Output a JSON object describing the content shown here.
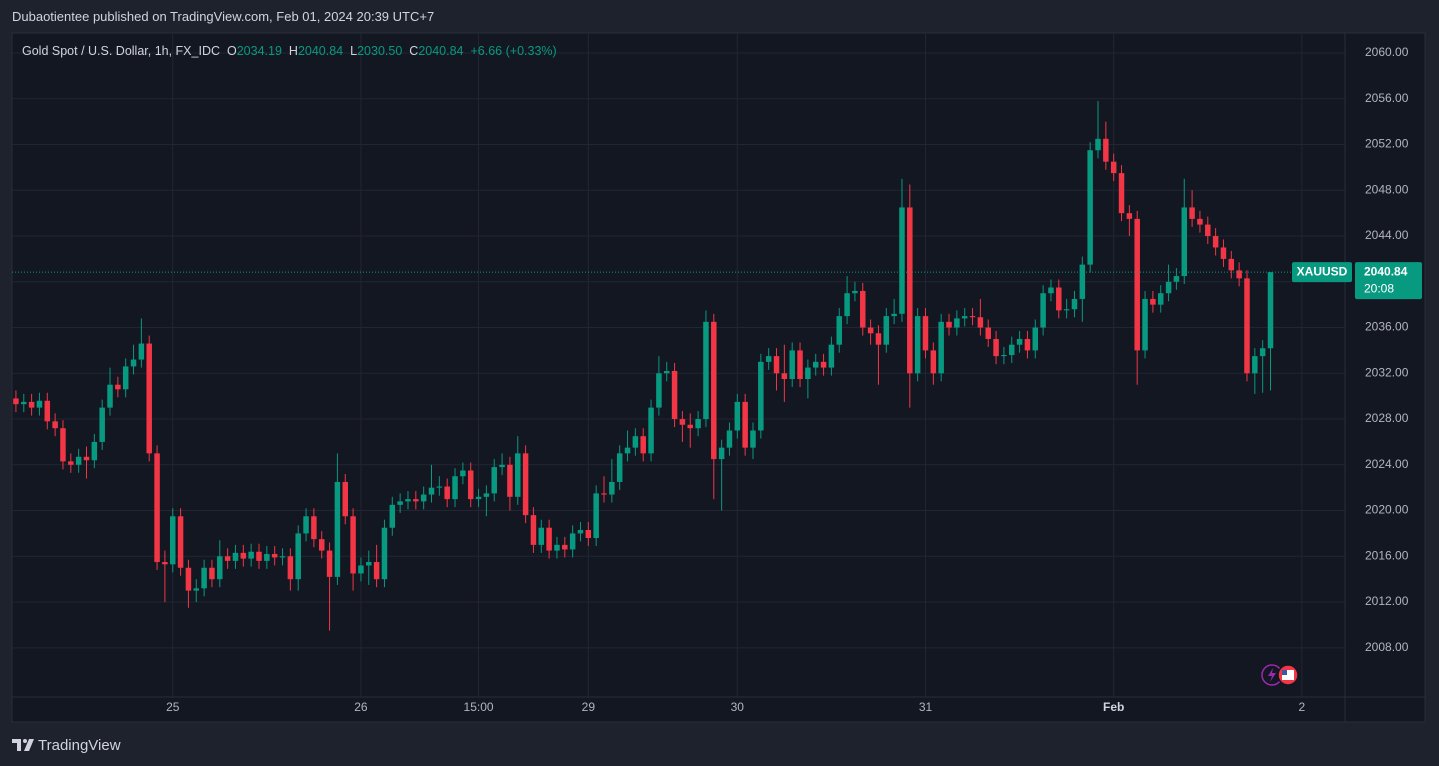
{
  "header": "Dubaotientee published on TradingView.com, Feb 01, 2024 20:39 UTC+7",
  "brand": "TradingView",
  "chart_data": {
    "type": "candlestick",
    "title": "Gold Spot / U.S. Dollar, 1h, FX_IDC",
    "legend": {
      "o_label": "O",
      "o": "2034.19",
      "h_label": "H",
      "h": "2040.84",
      "l_label": "L",
      "l": "2030.50",
      "c_label": "C",
      "c": "2040.84",
      "change": "+6.66 (+0.33%)"
    },
    "price_tag": {
      "symbol": "XAUUSD",
      "price": "2040.84",
      "countdown": "20:08"
    },
    "up_color": "#089981",
    "down_color": "#f23645",
    "grid": true,
    "ylim": [
      2003.7,
      2061.75
    ],
    "yticks": [
      {
        "value": 2008,
        "label": "2008.00"
      },
      {
        "value": 2012,
        "label": "2012.00"
      },
      {
        "value": 2016,
        "label": "2016.00"
      },
      {
        "value": 2020,
        "label": "2020.00"
      },
      {
        "value": 2024,
        "label": "2024.00"
      },
      {
        "value": 2028,
        "label": "2028.00"
      },
      {
        "value": 2032,
        "label": "2032.00"
      },
      {
        "value": 2036,
        "label": "2036.00"
      },
      {
        "value": 2040,
        "label": "2040.00"
      },
      {
        "value": 2044,
        "label": "2044.00"
      },
      {
        "value": 2048,
        "label": "2048.00"
      },
      {
        "value": 2052,
        "label": "2052.00"
      },
      {
        "value": 2056,
        "label": "2056.00"
      },
      {
        "value": 2060,
        "label": "2060.00"
      }
    ],
    "categories": [
      null,
      null,
      null,
      null,
      null,
      null,
      null,
      null,
      null,
      null,
      null,
      null,
      null,
      null,
      null,
      null,
      null,
      null,
      null,
      null,
      "25",
      null,
      null,
      null,
      null,
      null,
      null,
      null,
      null,
      null,
      null,
      null,
      null,
      null,
      null,
      null,
      null,
      null,
      null,
      null,
      null,
      null,
      null,
      null,
      "26",
      null,
      null,
      null,
      null,
      null,
      null,
      null,
      null,
      null,
      null,
      null,
      null,
      null,
      null,
      "15:00",
      null,
      null,
      null,
      null,
      null,
      null,
      null,
      null,
      null,
      null,
      null,
      null,
      null,
      "29",
      null,
      null,
      null,
      null,
      null,
      null,
      null,
      null,
      null,
      null,
      null,
      null,
      null,
      null,
      null,
      null,
      null,
      null,
      "30",
      null,
      null,
      null,
      null,
      null,
      null,
      null,
      null,
      null,
      null,
      null,
      null,
      null,
      null,
      null,
      null,
      null,
      null,
      null,
      null,
      null,
      null,
      null,
      "31",
      null,
      null,
      null,
      null,
      null,
      null,
      null,
      null,
      null,
      null,
      null,
      null,
      null,
      null,
      null,
      null,
      null,
      null,
      null,
      null,
      null,
      null,
      null,
      "Feb",
      null,
      null,
      null,
      null,
      null,
      null,
      null,
      null,
      null,
      null,
      null,
      null,
      null,
      null,
      null,
      null,
      null,
      null,
      null,
      null,
      null,
      null,
      null,
      "2",
      null,
      null,
      null,
      null,
      null
    ],
    "open": [
      2029.8,
      2029.3,
      2029.5,
      2029.0,
      2029.6,
      2027.8,
      2027.2,
      2024.3,
      2024.0,
      2024.7,
      2024.4,
      2026.0,
      2029.0,
      2031.0,
      2030.6,
      2032.6,
      2033.2,
      2034.6,
      2025.0,
      2015.5,
      2015.3,
      2019.5,
      2015.0,
      2013.0,
      2013.2,
      2015.0,
      2014.0,
      2016.0,
      2015.6,
      2016.3,
      2015.8,
      2016.4,
      2015.6,
      2016.2,
      2015.9,
      2016.0,
      2014.0,
      2018.0,
      2019.5,
      2017.5,
      2016.5,
      2014.2,
      2022.5,
      2019.5,
      2014.5,
      2015.2,
      2015.5,
      2014.0,
      2018.5,
      2020.5,
      2020.8,
      2021.0,
      2020.8,
      2021.4,
      2022.0,
      2022.1,
      2021.0,
      2023.0,
      2023.5,
      2021.0,
      2021.2,
      2021.5,
      2023.8,
      2024.0,
      2021.2,
      2025.0,
      2019.6,
      2017.0,
      2018.5,
      2016.5,
      2017.0,
      2016.6,
      2018.0,
      2018.3,
      2017.6,
      2021.5,
      2021.4,
      2022.5,
      2025.0,
      2025.5,
      2026.5,
      2025.0,
      2029.0,
      2032.0,
      2032.2,
      2028.0,
      2027.5,
      2027.2,
      2028.0,
      2036.5,
      2024.5,
      2025.5,
      2027.0,
      2029.5,
      2025.5,
      2027.0,
      2033.0,
      2033.5,
      2032.0,
      2031.5,
      2034.0,
      2031.5,
      2032.5,
      2033.0,
      2032.5,
      2034.5,
      2037.0,
      2039.0,
      2039.2,
      2036.0,
      2035.5,
      2034.5,
      2037.0,
      2037.2,
      2046.5,
      2032.0,
      2037.0,
      2034.0,
      2032.0,
      2036.5,
      2036.0,
      2036.8,
      2037.0,
      2036.9,
      2036.0,
      2035.0,
      2033.5,
      2033.6,
      2034.5,
      2035.0,
      2034.0,
      2036.0,
      2039.0,
      2039.5,
      2037.5,
      2037.6,
      2038.5,
      2041.5,
      2051.5,
      2052.5,
      2050.5,
      2049.5,
      2046.0,
      2045.5,
      2034.0,
      2038.5,
      2038.0,
      2039.0,
      2040.0,
      2040.5,
      2046.5,
      2045.5,
      2045.0,
      2044.0,
      2043.0,
      2042.0,
      2041.0,
      2040.3,
      2032.0,
      2033.5,
      2034.19,
      null,
      null,
      null,
      null,
      null,
      null,
      null,
      null,
      null
    ],
    "high": [
      2030.5,
      2030.2,
      2030.2,
      2030.3,
      2030.3,
      2028.5,
      2027.9,
      2025.0,
      2025.4,
      2025.6,
      2026.7,
      2029.7,
      2032.5,
      2031.7,
      2033.3,
      2034.5,
      2036.8,
      2035.3,
      2025.7,
      2016.5,
      2020.2,
      2020.2,
      2015.7,
      2014.0,
      2015.7,
      2015.7,
      2017.4,
      2016.7,
      2017.0,
      2017.0,
      2017.1,
      2017.1,
      2016.9,
      2016.9,
      2016.7,
      2016.7,
      2018.7,
      2020.2,
      2020.2,
      2018.2,
      2017.2,
      2025.0,
      2023.2,
      2020.2,
      2015.9,
      2016.5,
      2017.0,
      2019.2,
      2021.2,
      2021.5,
      2021.7,
      2021.7,
      2022.1,
      2024.0,
      2023.0,
      2022.8,
      2023.7,
      2024.2,
      2024.2,
      2021.9,
      2022.2,
      2024.5,
      2025.0,
      2024.7,
      2026.5,
      2025.7,
      2020.3,
      2019.2,
      2019.2,
      2017.7,
      2017.7,
      2018.7,
      2019.0,
      2019.0,
      2022.2,
      2023.0,
      2024.5,
      2025.7,
      2027.0,
      2027.2,
      2027.2,
      2029.7,
      2033.5,
      2033.0,
      2032.9,
      2028.7,
      2028.5,
      2028.7,
      2037.5,
      2037.2,
      2026.2,
      2027.7,
      2030.2,
      2030.2,
      2027.7,
      2033.7,
      2034.2,
      2034.2,
      2034.5,
      2034.7,
      2034.7,
      2033.2,
      2033.7,
      2033.7,
      2035.2,
      2037.7,
      2040.5,
      2040.0,
      2039.9,
      2036.7,
      2036.2,
      2037.7,
      2038.5,
      2049.0,
      2048.5,
      2037.7,
      2037.7,
      2034.7,
      2037.2,
      2037.2,
      2037.5,
      2037.7,
      2037.7,
      2038.5,
      2036.7,
      2035.7,
      2034.3,
      2035.2,
      2035.7,
      2035.7,
      2036.7,
      2039.7,
      2040.2,
      2040.2,
      2038.5,
      2039.2,
      2042.2,
      2052.2,
      2055.8,
      2054.0,
      2051.2,
      2050.2,
      2046.7,
      2046.2,
      2039.2,
      2039.2,
      2039.7,
      2041.5,
      2041.2,
      2049.0,
      2048.0,
      2046.2,
      2045.7,
      2044.7,
      2043.7,
      2042.7,
      2041.7,
      2041.0,
      2034.2,
      2034.9,
      2040.84,
      null,
      null,
      null,
      null,
      null,
      null,
      null,
      null,
      null
    ],
    "low": [
      2028.6,
      2028.6,
      2028.3,
      2028.3,
      2027.1,
      2026.5,
      2023.6,
      2023.3,
      2023.3,
      2022.8,
      2023.7,
      2025.3,
      2028.3,
      2029.9,
      2029.9,
      2031.9,
      2032.5,
      2024.3,
      2014.8,
      2012.0,
      2014.6,
      2014.3,
      2011.5,
      2012.0,
      2012.5,
      2013.3,
      2013.3,
      2014.9,
      2014.9,
      2015.1,
      2015.1,
      2014.9,
      2014.9,
      2015.2,
      2015.2,
      2013.0,
      2013.0,
      2017.3,
      2016.8,
      2015.8,
      2009.5,
      2013.5,
      2018.8,
      2013.0,
      2013.8,
      2013.5,
      2013.3,
      2013.3,
      2017.8,
      2019.8,
      2020.1,
      2020.1,
      2020.1,
      2020.7,
      2021.3,
      2020.3,
      2020.3,
      2022.3,
      2020.3,
      2020.3,
      2019.5,
      2020.8,
      2023.1,
      2020.0,
      2020.5,
      2018.9,
      2016.3,
      2016.3,
      2015.8,
      2015.8,
      2015.9,
      2015.9,
      2017.3,
      2016.9,
      2016.9,
      2020.7,
      2020.7,
      2021.8,
      2024.3,
      2024.8,
      2024.3,
      2024.3,
      2028.3,
      2031.3,
      2027.3,
      2026.0,
      2025.5,
      2026.5,
      2027.3,
      2021.0,
      2020.0,
      2024.8,
      2026.3,
      2024.8,
      2024.5,
      2026.3,
      2032.3,
      2030.5,
      2029.5,
      2030.8,
      2030.8,
      2029.8,
      2031.8,
      2031.8,
      2031.8,
      2033.8,
      2036.3,
      2038.3,
      2035.3,
      2034.5,
      2031.0,
      2033.8,
      2036.3,
      2036.5,
      2029.0,
      2031.3,
      2033.3,
      2031.0,
      2031.3,
      2035.3,
      2035.3,
      2036.1,
      2036.2,
      2035.3,
      2034.3,
      2032.8,
      2032.8,
      2032.9,
      2033.8,
      2033.3,
      2033.3,
      2035.3,
      2038.3,
      2036.8,
      2036.8,
      2036.9,
      2036.5,
      2040.8,
      2050.8,
      2049.8,
      2048.8,
      2045.3,
      2044.0,
      2031.0,
      2033.3,
      2037.3,
      2037.3,
      2038.3,
      2039.3,
      2039.8,
      2044.8,
      2044.3,
      2043.3,
      2042.3,
      2041.3,
      2040.3,
      2039.6,
      2031.3,
      2030.2,
      2030.3,
      2030.5,
      null,
      null,
      null,
      null,
      null,
      null,
      null,
      null,
      null
    ],
    "close": [
      2029.3,
      2029.5,
      2029.0,
      2029.6,
      2027.8,
      2027.2,
      2024.3,
      2024.0,
      2024.7,
      2024.4,
      2026.0,
      2029.0,
      2031.0,
      2030.6,
      2032.6,
      2033.2,
      2034.6,
      2025.0,
      2015.5,
      2015.3,
      2019.5,
      2015.0,
      2013.0,
      2013.2,
      2015.0,
      2014.0,
      2016.0,
      2015.6,
      2016.3,
      2015.8,
      2016.4,
      2015.6,
      2016.2,
      2015.9,
      2016.0,
      2014.0,
      2018.0,
      2019.5,
      2017.5,
      2016.5,
      2014.2,
      2022.5,
      2019.5,
      2014.5,
      2015.2,
      2015.5,
      2014.0,
      2018.5,
      2020.5,
      2020.8,
      2021.0,
      2020.8,
      2021.4,
      2022.0,
      2022.1,
      2021.0,
      2023.0,
      2023.5,
      2021.0,
      2021.2,
      2021.5,
      2023.8,
      2024.0,
      2021.2,
      2025.0,
      2019.6,
      2017.0,
      2018.5,
      2016.5,
      2017.0,
      2016.6,
      2018.0,
      2018.3,
      2017.6,
      2021.5,
      2021.4,
      2022.5,
      2025.0,
      2025.5,
      2026.5,
      2025.0,
      2029.0,
      2032.0,
      2032.2,
      2028.0,
      2027.5,
      2027.2,
      2028.0,
      2036.5,
      2024.5,
      2025.5,
      2027.0,
      2029.5,
      2025.5,
      2027.0,
      2033.0,
      2033.5,
      2032.0,
      2031.5,
      2034.0,
      2031.5,
      2032.5,
      2033.0,
      2032.5,
      2034.5,
      2037.0,
      2039.0,
      2039.2,
      2036.0,
      2035.5,
      2034.5,
      2037.0,
      2037.2,
      2046.5,
      2032.0,
      2037.0,
      2034.0,
      2032.0,
      2036.5,
      2036.0,
      2036.8,
      2037.0,
      2036.9,
      2036.0,
      2035.0,
      2033.5,
      2033.6,
      2034.5,
      2035.0,
      2034.0,
      2036.0,
      2039.0,
      2039.5,
      2037.5,
      2037.6,
      2038.5,
      2041.5,
      2051.5,
      2052.5,
      2050.5,
      2049.5,
      2046.0,
      2045.5,
      2034.0,
      2038.5,
      2038.0,
      2039.0,
      2040.0,
      2040.5,
      2046.5,
      2045.5,
      2045.0,
      2044.0,
      2043.0,
      2042.0,
      2041.0,
      2040.3,
      2032.0,
      2033.5,
      2034.19,
      2040.84,
      null,
      null,
      null,
      null,
      null,
      null,
      null,
      null,
      null
    ]
  }
}
